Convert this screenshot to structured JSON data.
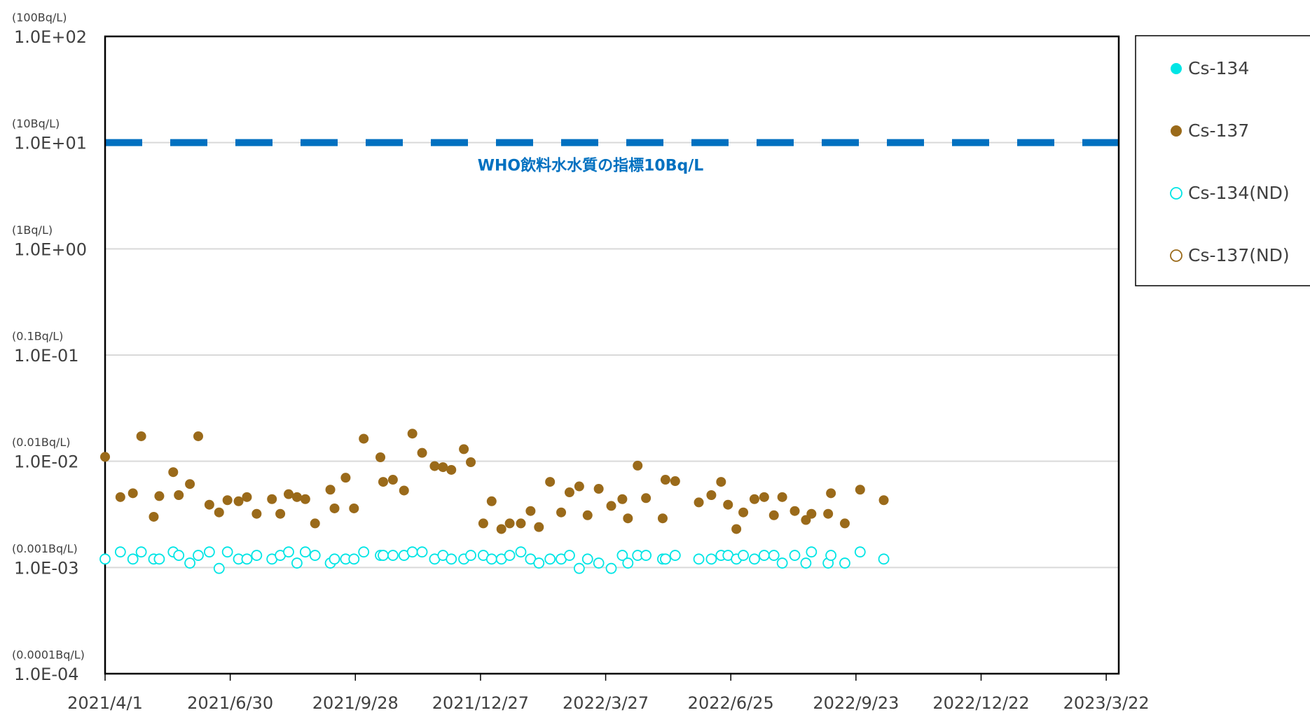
{
  "chart_data": {
    "type": "scatter",
    "log_y": true,
    "grid": true,
    "legend": "right",
    "xlim": [
      "2021/4/1",
      "2023/3/31"
    ],
    "xticks": [
      "2021/4/1",
      "2021/6/30",
      "2021/9/28",
      "2021/12/27",
      "2022/3/27",
      "2022/6/25",
      "2022/9/23",
      "2022/12/22",
      "2023/3/22"
    ],
    "ylim": [
      0.0001,
      100
    ],
    "yticks": [
      {
        "value": 0.0001,
        "label": "1.0E-04"
      },
      {
        "value": 0.001,
        "label": "1.0E-03"
      },
      {
        "value": 0.01,
        "label": "1.0E-02"
      },
      {
        "value": 0.1,
        "label": "1.0E-01"
      },
      {
        "value": 1,
        "label": "1.0E+00"
      },
      {
        "value": 10,
        "label": "1.0E+01"
      },
      {
        "value": 100,
        "label": "1.0E+02"
      }
    ],
    "ytick_notes": [
      "(0.0001Bq/L)",
      "(0.001Bq/L)",
      "(0.01Bq/L)",
      "(0.1Bq/L)",
      "(1Bq/L)",
      "(10Bq/L)",
      "(100Bq/L)"
    ],
    "reference_line": {
      "value": 10,
      "label": "WHO飲料水水質の指標10Bq/L",
      "color": "#0070c0"
    },
    "series": [
      {
        "name": "Cs-134",
        "color": "#00e5e5",
        "marker": "filled",
        "x": [],
        "values": []
      },
      {
        "name": "Cs-137",
        "color": "#9a6a1a",
        "marker": "filled",
        "x": [
          "2021/4/1",
          "2021/4/12",
          "2021/4/21",
          "2021/4/27",
          "2021/5/6",
          "2021/5/10",
          "2021/5/20",
          "2021/5/24",
          "2021/6/1",
          "2021/6/7",
          "2021/6/15",
          "2021/6/22",
          "2021/6/28",
          "2021/7/6",
          "2021/7/12",
          "2021/7/19",
          "2021/7/30",
          "2021/8/5",
          "2021/8/11",
          "2021/8/17",
          "2021/8/23",
          "2021/8/30",
          "2021/9/10",
          "2021/9/13",
          "2021/9/21",
          "2021/9/27",
          "2021/10/4",
          "2021/10/16",
          "2021/10/18",
          "2021/10/25",
          "2021/11/2",
          "2021/11/8",
          "2021/11/15",
          "2021/11/24",
          "2021/11/30",
          "2021/12/6",
          "2021/12/15",
          "2021/12/20",
          "2021/12/29",
          "2022/1/4",
          "2022/1/11",
          "2022/1/17",
          "2022/1/25",
          "2022/2/1",
          "2022/2/7",
          "2022/2/15",
          "2022/2/23",
          "2022/3/1",
          "2022/3/8",
          "2022/3/14",
          "2022/3/22",
          "2022/3/31",
          "2022/4/8",
          "2022/4/12",
          "2022/4/19",
          "2022/4/25",
          "2022/5/7",
          "2022/5/9",
          "2022/5/16",
          "2022/6/2",
          "2022/6/11",
          "2022/6/18",
          "2022/6/23",
          "2022/6/29",
          "2022/7/4",
          "2022/7/12",
          "2022/7/19",
          "2022/7/26",
          "2022/8/1",
          "2022/8/10",
          "2022/8/18",
          "2022/8/22",
          "2022/9/3",
          "2022/9/5",
          "2022/9/15",
          "2022/9/26",
          "2022/10/13"
        ],
        "values": [
          0.011,
          0.0046,
          0.005,
          0.0172,
          0.003,
          0.0047,
          0.0079,
          0.0048,
          0.0061,
          0.0172,
          0.0039,
          0.0033,
          0.0043,
          0.0042,
          0.0046,
          0.0032,
          0.0044,
          0.0032,
          0.0049,
          0.0046,
          0.0044,
          0.0026,
          0.0054,
          0.0036,
          0.007,
          0.0036,
          0.0163,
          0.0109,
          0.0064,
          0.0067,
          0.0053,
          0.0182,
          0.012,
          0.009,
          0.0088,
          0.0083,
          0.013,
          0.0098,
          0.0026,
          0.0042,
          0.0023,
          0.0026,
          0.0026,
          0.0034,
          0.0024,
          0.0064,
          0.0033,
          0.0051,
          0.0058,
          0.0031,
          0.0055,
          0.0038,
          0.0044,
          0.0029,
          0.0091,
          0.0045,
          0.0029,
          0.0067,
          0.0065,
          0.0041,
          0.0048,
          0.0064,
          0.0039,
          0.0023,
          0.0033,
          0.0044,
          0.0046,
          0.0031,
          0.0046,
          0.0034,
          0.0028,
          0.0032,
          0.0032,
          0.005,
          0.0026,
          0.0054,
          0.0043
        ]
      },
      {
        "name": "Cs-134(ND)",
        "color": "#00e5e5",
        "marker": "open",
        "x": [
          "2021/4/1",
          "2021/4/12",
          "2021/4/21",
          "2021/4/27",
          "2021/5/6",
          "2021/5/10",
          "2021/5/20",
          "2021/5/24",
          "2021/6/1",
          "2021/6/7",
          "2021/6/15",
          "2021/6/22",
          "2021/6/28",
          "2021/7/6",
          "2021/7/12",
          "2021/7/19",
          "2021/7/30",
          "2021/8/5",
          "2021/8/11",
          "2021/8/17",
          "2021/8/23",
          "2021/8/30",
          "2021/9/10",
          "2021/9/13",
          "2021/9/21",
          "2021/9/27",
          "2021/10/4",
          "2021/10/16",
          "2021/10/18",
          "2021/10/25",
          "2021/11/2",
          "2021/11/8",
          "2021/11/15",
          "2021/11/24",
          "2021/11/30",
          "2021/12/6",
          "2021/12/15",
          "2021/12/20",
          "2021/12/29",
          "2022/1/4",
          "2022/1/11",
          "2022/1/17",
          "2022/1/25",
          "2022/2/1",
          "2022/2/7",
          "2022/2/15",
          "2022/2/23",
          "2022/3/1",
          "2022/3/8",
          "2022/3/14",
          "2022/3/22",
          "2022/3/31",
          "2022/4/8",
          "2022/4/12",
          "2022/4/19",
          "2022/4/25",
          "2022/5/7",
          "2022/5/9",
          "2022/5/16",
          "2022/6/2",
          "2022/6/11",
          "2022/6/18",
          "2022/6/23",
          "2022/6/29",
          "2022/7/4",
          "2022/7/12",
          "2022/7/19",
          "2022/7/26",
          "2022/8/1",
          "2022/8/10",
          "2022/8/18",
          "2022/8/22",
          "2022/9/3",
          "2022/9/5",
          "2022/9/15",
          "2022/9/26",
          "2022/10/13"
        ],
        "values": [
          0.0012,
          0.0014,
          0.0012,
          0.0014,
          0.0012,
          0.0012,
          0.0014,
          0.0013,
          0.0011,
          0.0013,
          0.0014,
          0.00098,
          0.0014,
          0.0012,
          0.0012,
          0.0013,
          0.0012,
          0.0013,
          0.0014,
          0.0011,
          0.0014,
          0.0013,
          0.0011,
          0.0012,
          0.0012,
          0.0012,
          0.0014,
          0.0013,
          0.0013,
          0.0013,
          0.0013,
          0.0014,
          0.0014,
          0.0012,
          0.0013,
          0.0012,
          0.0012,
          0.0013,
          0.0013,
          0.0012,
          0.0012,
          0.0013,
          0.0014,
          0.0012,
          0.0011,
          0.0012,
          0.0012,
          0.0013,
          0.00098,
          0.0012,
          0.0011,
          0.00098,
          0.0013,
          0.0011,
          0.0013,
          0.0013,
          0.0012,
          0.0012,
          0.0013,
          0.0012,
          0.0012,
          0.0013,
          0.0013,
          0.0012,
          0.0013,
          0.0012,
          0.0013,
          0.0013,
          0.0011,
          0.0013,
          0.0011,
          0.0014,
          0.0011,
          0.0013,
          0.0011,
          0.0014,
          0.0012
        ]
      },
      {
        "name": "Cs-137(ND)",
        "color": "#9a6a1a",
        "marker": "open",
        "x": [],
        "values": []
      }
    ]
  }
}
